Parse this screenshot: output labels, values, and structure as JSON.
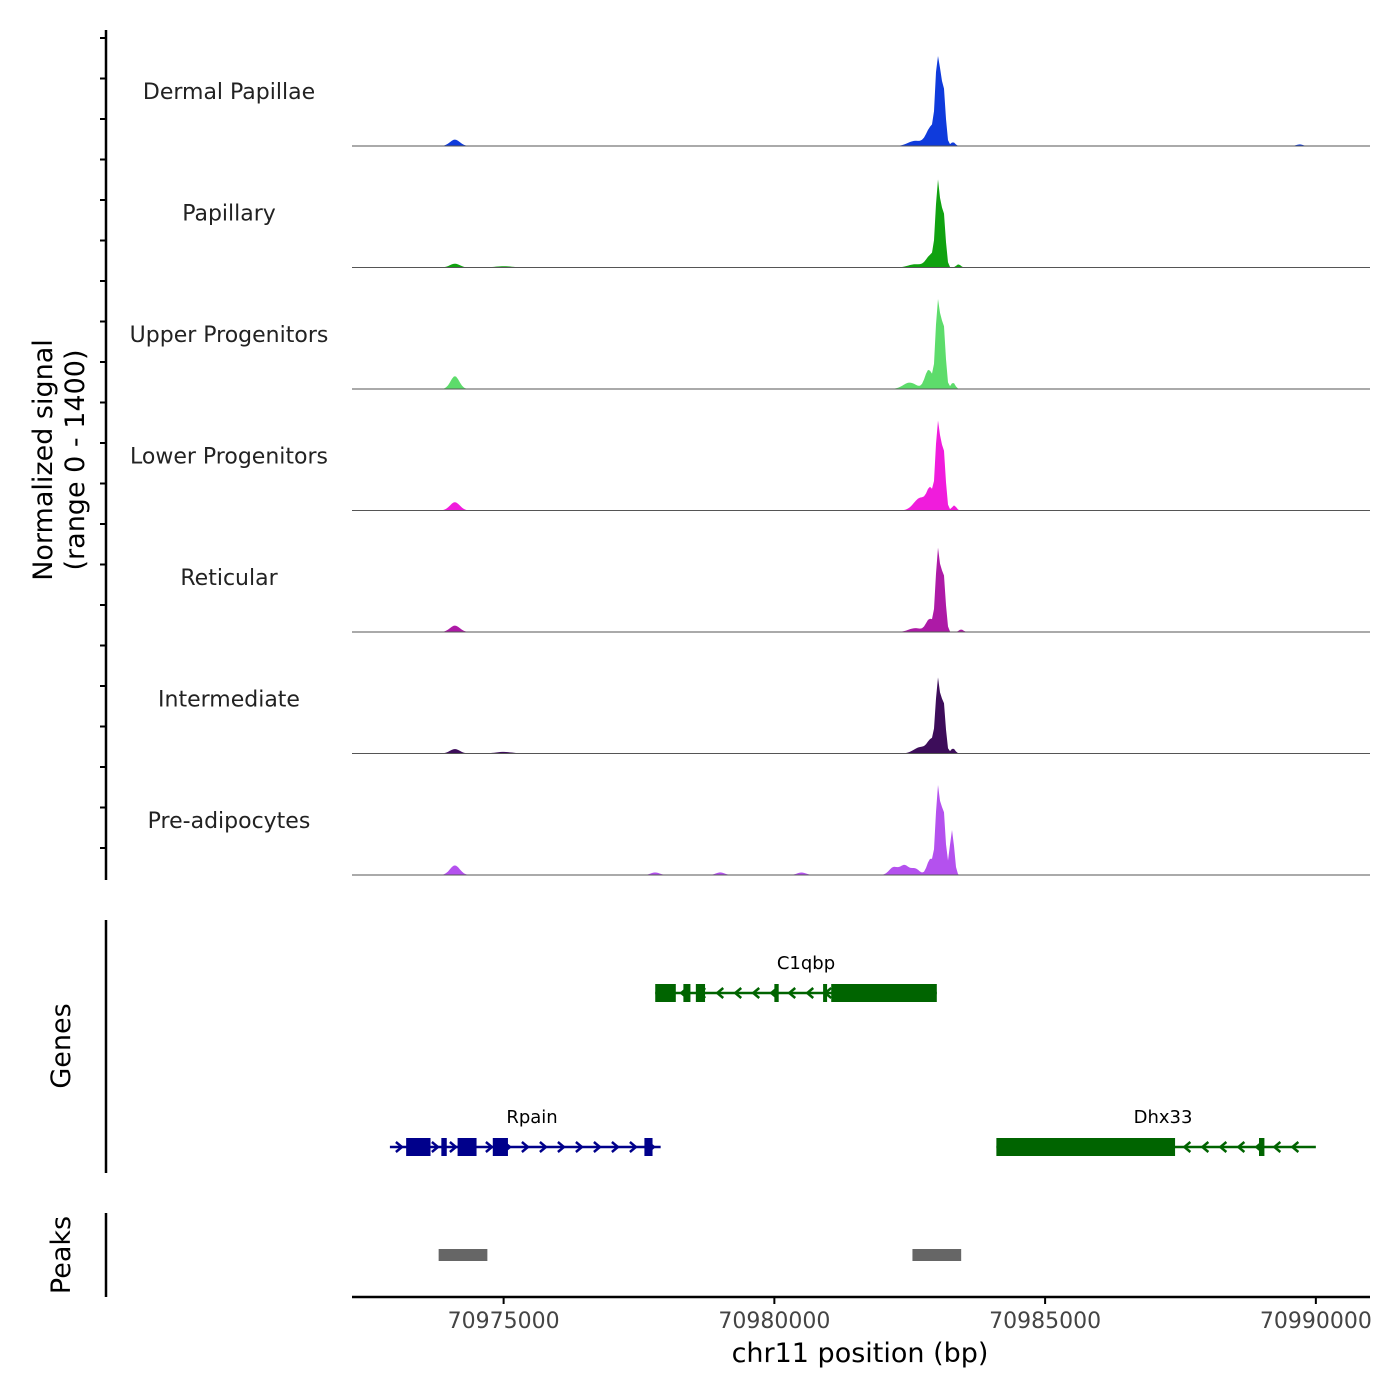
{
  "chart_data": {
    "type": "area",
    "title": "",
    "xlabel": "chr11 position (bp)",
    "xlim": [
      70972200,
      70991000
    ],
    "x_ticks": [
      {
        "value": 70975000,
        "label": "70975000"
      },
      {
        "value": 70980000,
        "label": "70980000"
      },
      {
        "value": 70985000,
        "label": "70985000"
      },
      {
        "value": 70990000,
        "label": "70990000"
      }
    ],
    "signal_panel": {
      "ylabel_line1": "Normalized signal",
      "ylabel_line2": "(range 0 - 1400)",
      "ylim": [
        0,
        1400
      ],
      "tracks": [
        {
          "name": "Dermal Papillae",
          "color": "#0f3bdc",
          "peaks": [
            [
              70974100,
              100,
              90
            ],
            [
              70982600,
              80,
              130
            ],
            [
              70982900,
              300,
              90
            ],
            [
              70983020,
              1400,
              40
            ],
            [
              70983120,
              900,
              40
            ],
            [
              70983300,
              60,
              40
            ],
            [
              70989700,
              25,
              60
            ]
          ]
        },
        {
          "name": "Papillary",
          "color": "#10a210",
          "peaks": [
            [
              70974100,
              60,
              90
            ],
            [
              70975000,
              20,
              150
            ],
            [
              70982600,
              50,
              130
            ],
            [
              70982900,
              200,
              90
            ],
            [
              70983020,
              1250,
              40
            ],
            [
              70983120,
              850,
              40
            ],
            [
              70983400,
              50,
              40
            ]
          ]
        },
        {
          "name": "Upper Progenitors",
          "color": "#5ddc6b",
          "peaks": [
            [
              70974100,
              200,
              80
            ],
            [
              70982500,
              100,
              120
            ],
            [
              70982850,
              300,
              70
            ],
            [
              70983020,
              1400,
              40
            ],
            [
              70983120,
              1000,
              40
            ],
            [
              70983300,
              100,
              40
            ]
          ]
        },
        {
          "name": "Lower Progenitors",
          "color": "#f01cdc",
          "peaks": [
            [
              70974100,
              130,
              90
            ],
            [
              70982700,
              200,
              120
            ],
            [
              70982880,
              300,
              60
            ],
            [
              70983020,
              1400,
              40
            ],
            [
              70983120,
              950,
              40
            ],
            [
              70983320,
              80,
              40
            ]
          ]
        },
        {
          "name": "Reticular",
          "color": "#ad1aa6",
          "peaks": [
            [
              70974100,
              100,
              90
            ],
            [
              70982600,
              60,
              120
            ],
            [
              70982870,
              200,
              70
            ],
            [
              70983020,
              1250,
              40
            ],
            [
              70983120,
              900,
              40
            ],
            [
              70983450,
              40,
              40
            ]
          ]
        },
        {
          "name": "Intermediate",
          "color": "#3d0d5a",
          "peaks": [
            [
              70974100,
              70,
              90
            ],
            [
              70975000,
              25,
              150
            ],
            [
              70982700,
              100,
              120
            ],
            [
              70982900,
              200,
              70
            ],
            [
              70983020,
              1100,
              40
            ],
            [
              70983120,
              800,
              40
            ],
            [
              70983300,
              80,
              40
            ]
          ]
        },
        {
          "name": "Pre-adipocytes",
          "color": "#b451ee",
          "peaks": [
            [
              70974100,
              150,
              90
            ],
            [
              70977800,
              40,
              80
            ],
            [
              70979000,
              40,
              80
            ],
            [
              70980500,
              40,
              80
            ],
            [
              70982200,
              120,
              80
            ],
            [
              70982400,
              150,
              80
            ],
            [
              70982600,
              100,
              80
            ],
            [
              70982880,
              250,
              60
            ],
            [
              70983020,
              1350,
              40
            ],
            [
              70983120,
              1000,
              40
            ],
            [
              70983280,
              700,
              40
            ]
          ]
        }
      ]
    },
    "genes_panel": {
      "ylabel": "Genes",
      "genes": [
        {
          "name": "C1qbp",
          "strand": "-",
          "color": "#006400",
          "start": 70977800,
          "end": 70983000,
          "exons": [
            [
              70977800,
              70978180
            ],
            [
              70978320,
              70978450
            ],
            [
              70978550,
              70978720
            ],
            [
              70980000,
              70980080
            ],
            [
              70980900,
              70980970
            ],
            [
              70981050,
              70983000
            ]
          ]
        },
        {
          "name": "Rpain",
          "strand": "+",
          "color": "#00008b",
          "start": 70972900,
          "end": 70977900,
          "exons": [
            [
              70973200,
              70973650
            ],
            [
              70973850,
              70973950
            ],
            [
              70974150,
              70974500
            ],
            [
              70974800,
              70975080
            ],
            [
              70977600,
              70977750
            ]
          ]
        },
        {
          "name": "Dhx33",
          "strand": "-",
          "color": "#006400",
          "start": 70984100,
          "end": 70990000,
          "exons": [
            [
              70984100,
              70987400
            ],
            [
              70988950,
              70989050
            ]
          ]
        }
      ]
    },
    "peaks_panel": {
      "ylabel": "Peaks",
      "color": "#666666",
      "regions": [
        [
          70973800,
          70974700
        ],
        [
          70982550,
          70983450
        ]
      ]
    }
  }
}
